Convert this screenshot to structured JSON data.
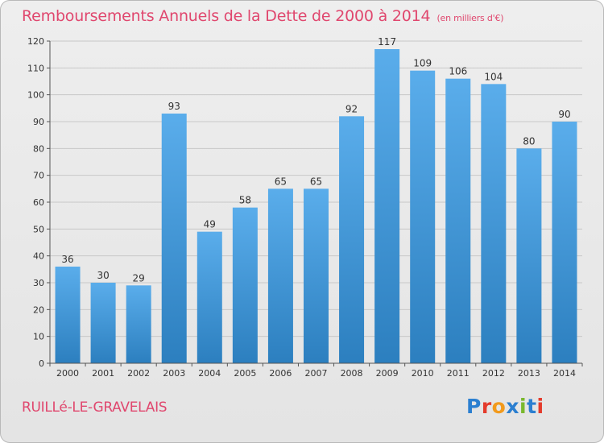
{
  "header": {
    "title": "Remboursements Annuels de la Dette de 2000 à 2014",
    "unit": "(en milliers d'€)"
  },
  "footer": {
    "place": "RUILLé-LE-GRAVELAIS",
    "brand": "Proxiti",
    "brand_colors": [
      "#2b7fd0",
      "#e43b2c",
      "#f29a1c",
      "#2b7fd0",
      "#7ab82e",
      "#2b7fd0",
      "#e43b2c"
    ]
  },
  "colors": {
    "accent": "#e0476e",
    "bar_top": "#5aadeb",
    "bar_bottom": "#2c7fbf",
    "grid": "#c8c8c8",
    "text": "#333333"
  },
  "chart_data": {
    "type": "bar",
    "title": "Remboursements Annuels de la Dette de 2000 à 2014",
    "unit": "(en milliers d'€)",
    "categories": [
      "2000",
      "2001",
      "2002",
      "2003",
      "2004",
      "2005",
      "2006",
      "2007",
      "2008",
      "2009",
      "2010",
      "2011",
      "2012",
      "2013",
      "2014"
    ],
    "values": [
      36,
      30,
      29,
      93,
      49,
      58,
      65,
      65,
      92,
      117,
      109,
      106,
      104,
      80,
      90
    ],
    "yticks": [
      0,
      10,
      20,
      30,
      40,
      50,
      60,
      70,
      80,
      90,
      100,
      110,
      120
    ],
    "ylim": [
      0,
      120
    ],
    "grid": true,
    "data_labels": true
  }
}
